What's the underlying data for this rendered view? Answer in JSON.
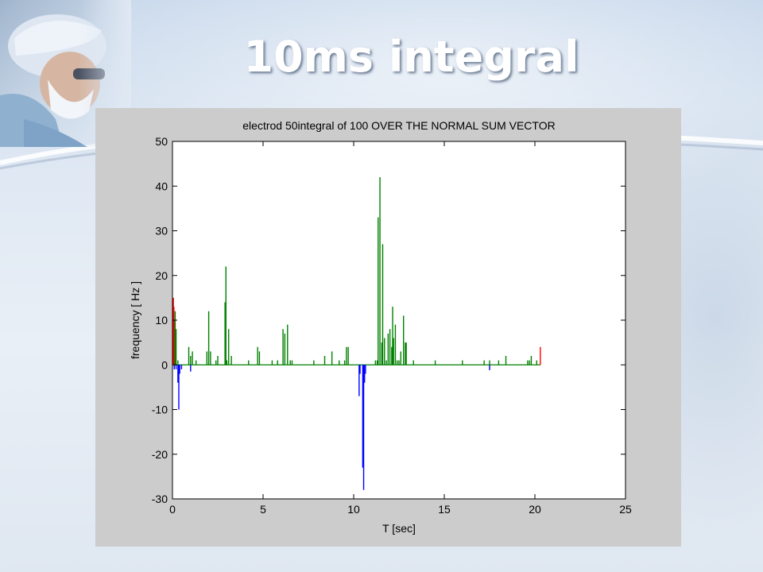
{
  "slide": {
    "title": "10ms integral"
  },
  "colors": {
    "positive_series": "#008000",
    "negative_series": "#0000ff",
    "edge_series": "#ff0000",
    "figure_background": "#cccccc",
    "axes_background": "#ffffff"
  },
  "icons": {
    "photo": "surgeon-photo"
  },
  "chart_data": {
    "type": "bar",
    "title": "electrod 50integral of 100 OVER THE NORMAL SUM VECTOR",
    "xlabel": "T [sec]",
    "ylabel": "frequency [ Hz ]",
    "xlim": [
      0,
      25
    ],
    "ylim": [
      -30,
      50
    ],
    "xticks": [
      "0",
      "5",
      "10",
      "15",
      "20",
      "25"
    ],
    "yticks": [
      "-30",
      "-20",
      "-10",
      "0",
      "10",
      "20",
      "30",
      "40",
      "50"
    ],
    "grid": false,
    "series": [
      {
        "color": "#008000",
        "points": [
          [
            0.1,
            10
          ],
          [
            0.15,
            12
          ],
          [
            0.2,
            8
          ],
          [
            0.3,
            1
          ],
          [
            0.9,
            4
          ],
          [
            1.0,
            2
          ],
          [
            1.1,
            3
          ],
          [
            1.3,
            1
          ],
          [
            1.9,
            3
          ],
          [
            2.0,
            12
          ],
          [
            2.1,
            3
          ],
          [
            2.4,
            1
          ],
          [
            2.5,
            2
          ],
          [
            2.9,
            14
          ],
          [
            2.95,
            22
          ],
          [
            3.0,
            1
          ],
          [
            3.1,
            8
          ],
          [
            3.25,
            2
          ],
          [
            4.2,
            1
          ],
          [
            4.7,
            4
          ],
          [
            4.8,
            3
          ],
          [
            5.5,
            1
          ],
          [
            5.8,
            1
          ],
          [
            6.1,
            8
          ],
          [
            6.2,
            7
          ],
          [
            6.35,
            9
          ],
          [
            6.5,
            1
          ],
          [
            6.6,
            1
          ],
          [
            7.8,
            1
          ],
          [
            8.4,
            2
          ],
          [
            8.8,
            3
          ],
          [
            9.2,
            1
          ],
          [
            9.5,
            1
          ],
          [
            9.6,
            4
          ],
          [
            9.7,
            4
          ],
          [
            11.2,
            1
          ],
          [
            11.3,
            1
          ],
          [
            11.35,
            33
          ],
          [
            11.45,
            42
          ],
          [
            11.55,
            5
          ],
          [
            11.6,
            27
          ],
          [
            11.7,
            6
          ],
          [
            11.8,
            1
          ],
          [
            11.9,
            7
          ],
          [
            12.0,
            8
          ],
          [
            12.1,
            4
          ],
          [
            12.15,
            13
          ],
          [
            12.2,
            6
          ],
          [
            12.3,
            9
          ],
          [
            12.4,
            1
          ],
          [
            12.5,
            1
          ],
          [
            12.6,
            3
          ],
          [
            12.75,
            11
          ],
          [
            12.85,
            5
          ],
          [
            12.9,
            5
          ],
          [
            13.3,
            1
          ],
          [
            14.5,
            1
          ],
          [
            16.0,
            1
          ],
          [
            17.2,
            1
          ],
          [
            17.5,
            1
          ],
          [
            18.0,
            1
          ],
          [
            18.4,
            2
          ],
          [
            19.6,
            1
          ],
          [
            19.7,
            1
          ],
          [
            19.8,
            2
          ],
          [
            20.1,
            1
          ]
        ]
      },
      {
        "color": "#0000ff",
        "points": [
          [
            0.1,
            -1
          ],
          [
            0.2,
            -1
          ],
          [
            0.3,
            -4
          ],
          [
            0.35,
            -10
          ],
          [
            0.4,
            -2
          ],
          [
            0.5,
            -1
          ],
          [
            1.0,
            -1.5
          ],
          [
            10.3,
            -7
          ],
          [
            10.35,
            -2
          ],
          [
            10.5,
            -23
          ],
          [
            10.55,
            -28
          ],
          [
            10.6,
            -4
          ],
          [
            10.65,
            -2
          ],
          [
            17.5,
            -1.2
          ]
        ]
      },
      {
        "color": "#ff0000",
        "points": [
          [
            0.05,
            15
          ],
          [
            0.08,
            13
          ],
          [
            20.3,
            4
          ]
        ]
      }
    ]
  }
}
